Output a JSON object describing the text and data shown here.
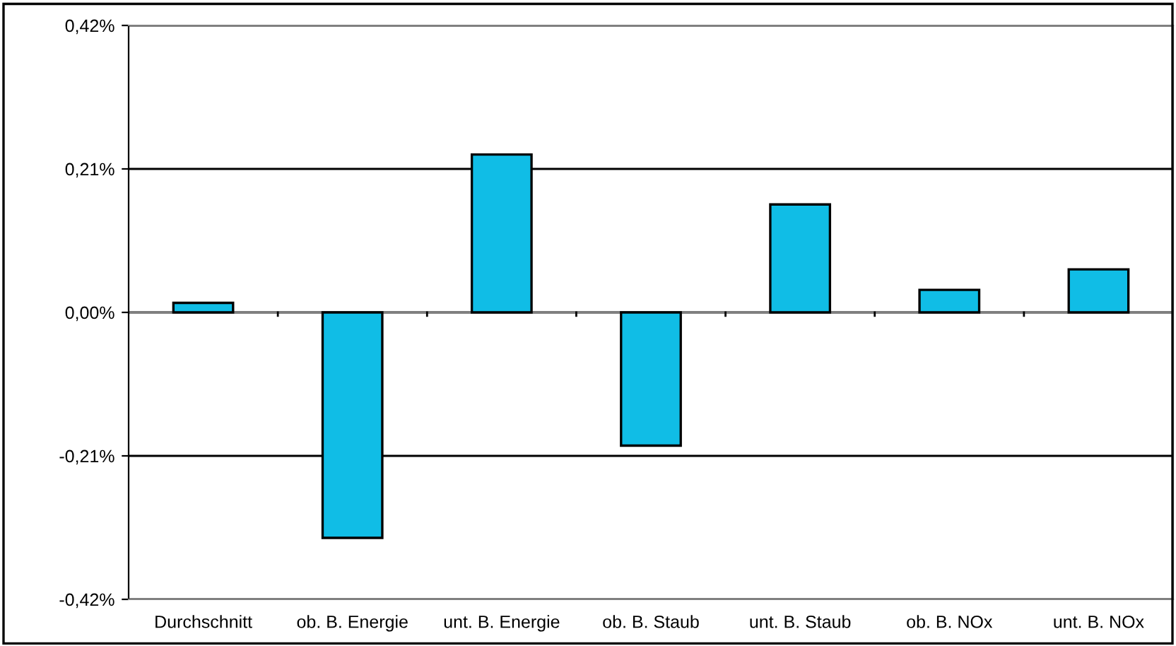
{
  "chart_data": {
    "type": "bar",
    "categories": [
      "Durchschnitt",
      "ob. B. Energie",
      "unt. B. Energie",
      "ob. B. Staub",
      "unt. B. Staub",
      "ob. B. NOx",
      "unt. B. NOx"
    ],
    "values": [
      0.014,
      -0.33,
      0.231,
      -0.195,
      0.158,
      0.033,
      0.063
    ],
    "color": "#10bde6",
    "ylim": [
      -0.42,
      0.42
    ],
    "yticks": [
      {
        "value": -0.42,
        "label": "-0,42%"
      },
      {
        "value": -0.21,
        "label": "-0,21%"
      },
      {
        "value": 0,
        "label": "0,00%"
      },
      {
        "value": 0.21,
        "label": "0,21%"
      },
      {
        "value": 0.42,
        "label": "0,42%"
      }
    ],
    "grid": "y"
  }
}
